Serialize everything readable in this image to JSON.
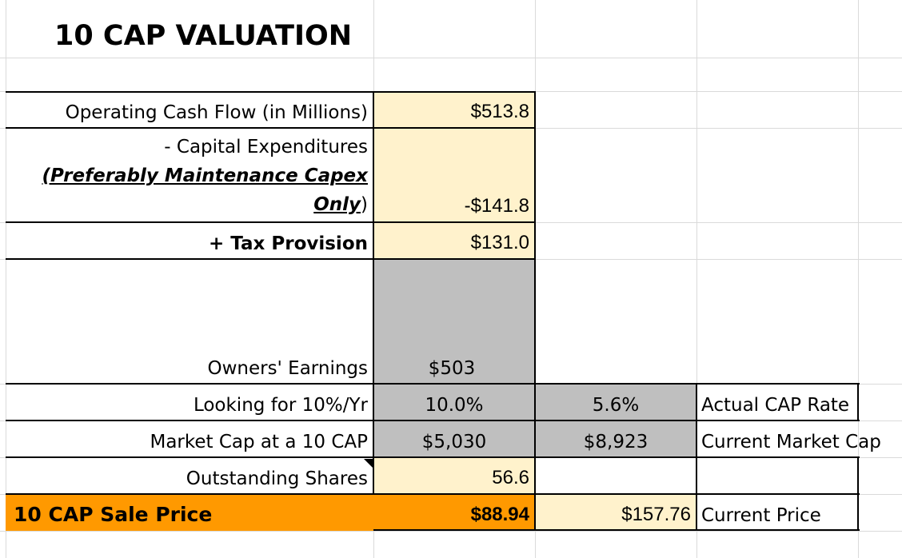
{
  "sheet": {
    "title": "10 CAP VALUATION",
    "rows": {
      "ocf": {
        "label": "Operating Cash Flow (in Millions)",
        "value": "$513.8"
      },
      "capex": {
        "label_line1": "- Capital Expenditures",
        "label_line2": "(Preferably Maintenance Capex",
        "label_line3_em": "Only",
        "label_line3_rest": ")",
        "value": "-$141.8"
      },
      "tax": {
        "label": "+ Tax Provision",
        "value": "$131.0"
      },
      "owners": {
        "label": "Owners' Earnings",
        "value": "$503"
      },
      "looking": {
        "label": "Looking for 10%/Yr",
        "value": "10.0%",
        "actual_value": "5.6%",
        "actual_label": "Actual CAP Rate"
      },
      "market": {
        "label": "Market Cap at a 10 CAP",
        "value": "$5,030",
        "current_value": "$8,923",
        "current_label": "Current Market Cap"
      },
      "shares": {
        "label": "Outstanding Shares",
        "value": "56.6"
      },
      "sale": {
        "label": "10 CAP Sale Price",
        "value": "$88.94",
        "current_value": "$157.76",
        "current_label": "Current Price"
      }
    }
  }
}
